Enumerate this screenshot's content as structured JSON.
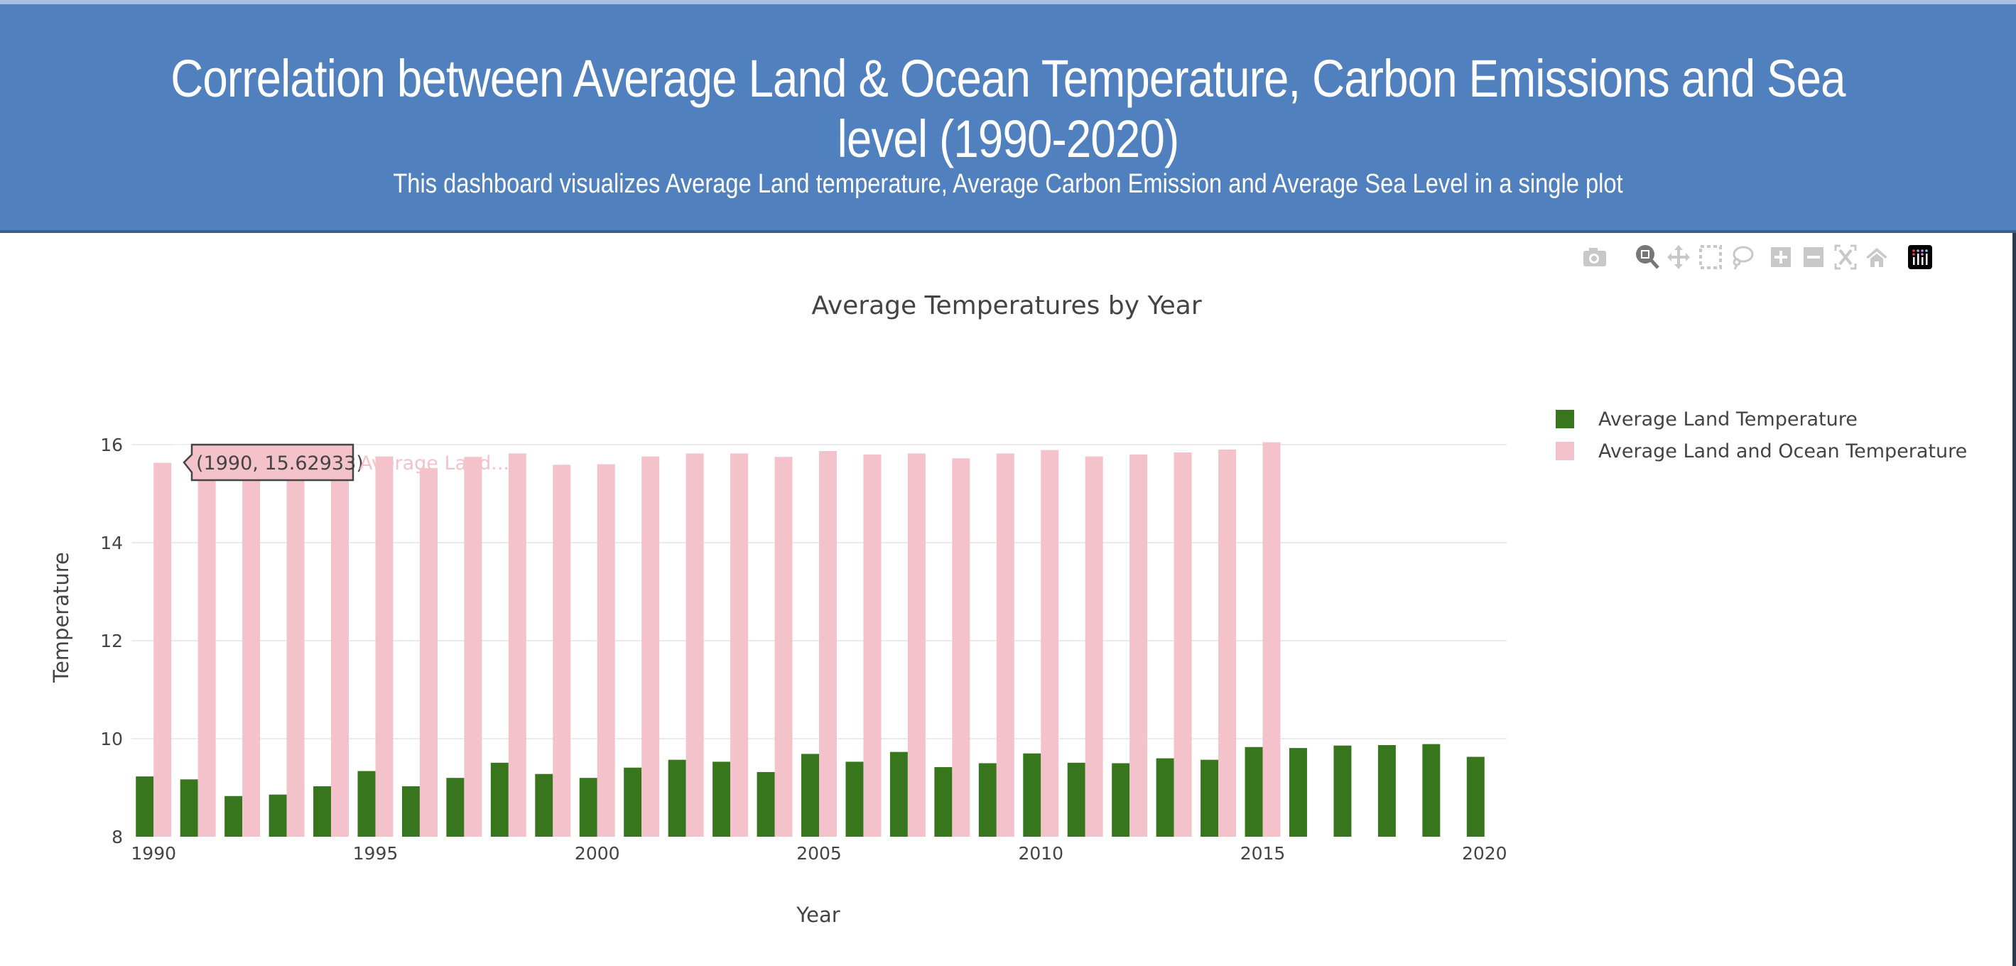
{
  "header": {
    "title": "Correlation between Average Land & Ocean Temperature, Carbon Emissions and Sea level (1990-2020)",
    "subtitle": "This dashboard visualizes Average Land temperature, Average Carbon Emission and Average Sea Level in a single plot"
  },
  "toolbar": {
    "icons": [
      "camera-icon",
      "zoom-icon",
      "pan-icon",
      "box-select-icon",
      "lasso-icon",
      "zoom-in-icon",
      "zoom-out-icon",
      "autoscale-icon",
      "home-icon",
      "plotly-logo-icon"
    ],
    "active": "zoom-icon"
  },
  "tooltip": {
    "value": "(1990, 15.62933)",
    "series": "Average Land..."
  },
  "chart_data": {
    "type": "bar",
    "title": "Average Temperatures by Year",
    "xlabel": "Year",
    "ylabel": "Temperature",
    "xlim": [
      1989.5,
      2020.5
    ],
    "ylim": [
      8,
      16.3
    ],
    "xticks": [
      1990,
      1995,
      2000,
      2005,
      2010,
      2015,
      2020
    ],
    "yticks": [
      8,
      10,
      12,
      14,
      16
    ],
    "grid": true,
    "legend": "top-right",
    "x": [
      1990,
      1991,
      1992,
      1993,
      1994,
      1995,
      1996,
      1997,
      1998,
      1999,
      2000,
      2001,
      2002,
      2003,
      2004,
      2005,
      2006,
      2007,
      2008,
      2009,
      2010,
      2011,
      2012,
      2013,
      2014,
      2015,
      2016,
      2017,
      2018,
      2019,
      2020
    ],
    "series": [
      {
        "name": "Average Land Temperature",
        "color": "#38761d",
        "values": [
          9.23,
          9.17,
          8.83,
          8.86,
          9.03,
          9.34,
          9.03,
          9.2,
          9.51,
          9.28,
          9.2,
          9.41,
          9.57,
          9.53,
          9.32,
          9.69,
          9.53,
          9.73,
          9.42,
          9.5,
          9.7,
          9.51,
          9.5,
          9.6,
          9.57,
          9.83,
          9.81,
          9.86,
          9.87,
          9.89,
          9.63
        ]
      },
      {
        "name": "Average Land and Ocean Temperature",
        "color": "#f4c2cb",
        "values": [
          15.62933,
          15.74,
          15.43,
          15.46,
          15.56,
          15.76,
          15.52,
          15.75,
          15.82,
          15.59,
          15.6,
          15.76,
          15.82,
          15.82,
          15.75,
          15.87,
          15.8,
          15.82,
          15.72,
          15.82,
          15.89,
          15.76,
          15.8,
          15.84,
          15.9,
          16.05,
          null,
          null,
          null,
          null,
          null
        ]
      }
    ]
  }
}
